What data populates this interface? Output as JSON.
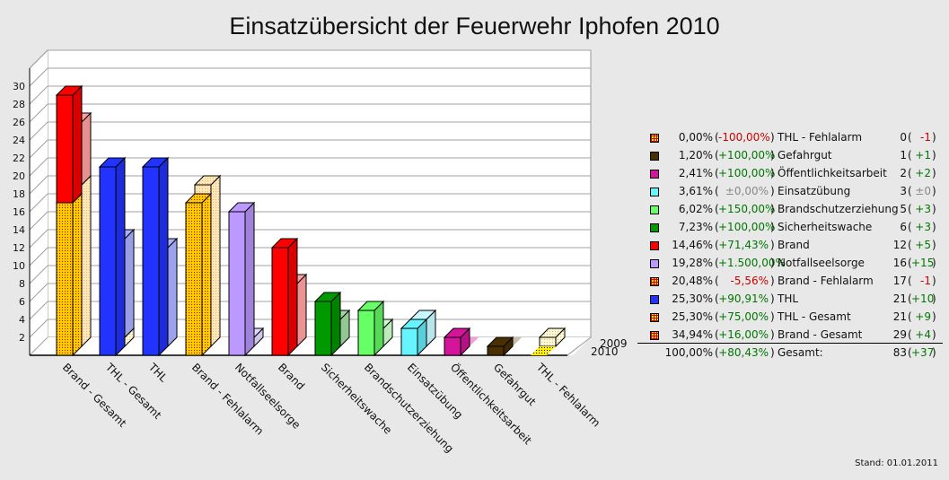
{
  "title": "Einsatzübersicht der Feuerwehr Iphofen 2010",
  "stand": "Stand: 01.01.2011",
  "chart_data": {
    "type": "bar",
    "style": "3d-grouped",
    "title": "Einsatzübersicht der Feuerwehr Iphofen 2010",
    "xlabel": "",
    "ylabel": "",
    "ylim": [
      0,
      32
    ],
    "yticks": [
      2,
      4,
      6,
      8,
      10,
      12,
      14,
      16,
      18,
      20,
      22,
      24,
      26,
      28,
      30
    ],
    "grid": true,
    "depth_labels": [
      "2009",
      "2010"
    ],
    "categories": [
      "Brand - Gesamt",
      "THL - Gesamt",
      "THL",
      "Brand - Fehlalarm",
      "Notfallseelsorge",
      "Brand",
      "Sicherheitswache",
      "Brandschutzerziehung",
      "Einsatzübung",
      "Öffentlichkeitsarbeit",
      "Gefahrgut",
      "THL - Fehlalarm"
    ],
    "series": [
      {
        "name": "2010",
        "values": [
          29,
          21,
          21,
          17,
          16,
          12,
          6,
          5,
          3,
          2,
          1,
          0
        ]
      },
      {
        "name": "2009",
        "values": [
          25,
          12,
          11,
          18,
          1,
          7,
          3,
          2,
          3,
          0,
          0,
          1
        ]
      }
    ],
    "stacks_2010": [
      {
        "fehlalarm": 17,
        "rest": 12,
        "rest_color": "#ff0000"
      },
      {
        "fehlalarm": 0,
        "rest": 21,
        "rest_color": "#2233ff"
      },
      null,
      null,
      null,
      null,
      null,
      null,
      null,
      null,
      null,
      null
    ],
    "stacks_2009": [
      {
        "fehlalarm": 18,
        "rest": 7,
        "rest_color": "#ffa0a0"
      },
      {
        "fehlalarm": 1,
        "rest": 11,
        "rest_color": "#aab0ff"
      },
      null,
      null,
      null,
      null,
      null,
      null,
      null,
      null,
      null,
      null
    ],
    "colors_2010": [
      "#ffcc00",
      "#ffee00",
      "#2233ff",
      "#ffcc00",
      "#bb99ff",
      "#ff0000",
      "#009900",
      "#66ff66",
      "#66f5ff",
      "#d4149a",
      "#4a3000",
      "#ffee00"
    ],
    "colors_2009": [
      "#ffe0a0",
      "#fff0b0",
      "#aab0ff",
      "#ffe0a0",
      "#e0d8ff",
      "#ffa0a0",
      "#a0d8a0",
      "#ccffcc",
      "#c8f8ff",
      "#f0a0d8",
      "#c8bca8",
      "#f8f0c0"
    ],
    "patterned": [
      true,
      true,
      false,
      true,
      false,
      false,
      false,
      false,
      false,
      false,
      false,
      true
    ]
  },
  "legend": {
    "rows": [
      {
        "pct": "0,00%",
        "chg": "-100,00%",
        "chg_type": "neg",
        "name": "THL - Fehlalarm",
        "count": "0",
        "cchg": "-1",
        "cchg_type": "neg",
        "color": "#ffee00",
        "pattern": true
      },
      {
        "pct": "1,20%",
        "chg": "+100,00%",
        "chg_type": "pos",
        "name": "Gefahrgut",
        "count": "1",
        "cchg": "+1",
        "cchg_type": "pos",
        "color": "#4a3000",
        "pattern": false
      },
      {
        "pct": "2,41%",
        "chg": "+100,00%",
        "chg_type": "pos",
        "name": "Öffentlichkeitsarbeit",
        "count": "2",
        "cchg": "+2",
        "cchg_type": "pos",
        "color": "#d4149a",
        "pattern": false
      },
      {
        "pct": "3,61%",
        "chg": "±0,00%",
        "chg_type": "neu",
        "name": "Einsatzübung",
        "count": "3",
        "cchg": "±0",
        "cchg_type": "neu",
        "color": "#66f5ff",
        "pattern": false
      },
      {
        "pct": "6,02%",
        "chg": "+150,00%",
        "chg_type": "pos",
        "name": "Brandschutzerziehung",
        "count": "5",
        "cchg": "+3",
        "cchg_type": "pos",
        "color": "#66ff66",
        "pattern": false
      },
      {
        "pct": "7,23%",
        "chg": "+100,00%",
        "chg_type": "pos",
        "name": "Sicherheitswache",
        "count": "6",
        "cchg": "+3",
        "cchg_type": "pos",
        "color": "#009900",
        "pattern": false
      },
      {
        "pct": "14,46%",
        "chg": "+71,43%",
        "chg_type": "pos",
        "name": "Brand",
        "count": "12",
        "cchg": "+5",
        "cchg_type": "pos",
        "color": "#ff0000",
        "pattern": false
      },
      {
        "pct": "19,28%",
        "chg": "+1.500,00%",
        "chg_type": "pos",
        "name": "Notfallseelsorge",
        "count": "16",
        "cchg": "+15",
        "cchg_type": "pos",
        "color": "#bb99ff",
        "pattern": false
      },
      {
        "pct": "20,48%",
        "chg": "-5,56%",
        "chg_type": "neg",
        "name": "Brand - Fehlalarm",
        "count": "17",
        "cchg": "-1",
        "cchg_type": "neg",
        "color": "#ffcc00",
        "pattern": true
      },
      {
        "pct": "25,30%",
        "chg": "+90,91%",
        "chg_type": "pos",
        "name": "THL",
        "count": "21",
        "cchg": "+10",
        "cchg_type": "pos",
        "color": "#2233ff",
        "pattern": false
      },
      {
        "pct": "25,30%",
        "chg": "+75,00%",
        "chg_type": "pos",
        "name": "THL - Gesamt",
        "count": "21",
        "cchg": "+9",
        "cchg_type": "pos",
        "color": "#ffee00",
        "pattern": true
      },
      {
        "pct": "34,94%",
        "chg": "+16,00%",
        "chg_type": "pos",
        "name": "Brand - Gesamt",
        "count": "29",
        "cchg": "+4",
        "cchg_type": "pos",
        "color": "#ffcc00",
        "pattern": true
      }
    ],
    "total": {
      "pct": "100,00%",
      "chg": "+80,43%",
      "chg_type": "pos",
      "name": "Gesamt:",
      "count": "83",
      "cchg": "+37",
      "cchg_type": "pos"
    }
  }
}
